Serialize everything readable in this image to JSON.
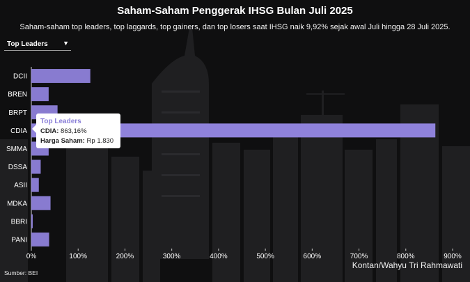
{
  "title": "Saham-Saham Penggerak IHSG Bulan Juli 2025",
  "subtitle": "Saham-saham top leaders, top laggards, top gainers, dan top losers saat IHSG naik 9,92% sejak awal Juli hingga 28 Juli 2025.",
  "dropdown": {
    "selected": "Top Leaders"
  },
  "tooltip": {
    "title": "Top Leaders",
    "row1_key": "CDIA:",
    "row1_value": "863,16%",
    "row2_key": "Harga Saham:",
    "row2_value": "Rp 1.830"
  },
  "source": "Sumber: BEI",
  "credit": "Kontan/Wahyu Tri Rahmawati",
  "colors": {
    "bar": "#8f82db",
    "background": "#0f0f10",
    "grid": "#3a3a3a"
  },
  "chart_data": {
    "type": "bar",
    "orientation": "horizontal",
    "title": "Saham-Saham Penggerak IHSG Bulan Juli 2025",
    "xlabel": "",
    "ylabel": "",
    "categories": [
      "DCII",
      "BREN",
      "BRPT",
      "CDIA",
      "SMMA",
      "DSSA",
      "ASII",
      "MDKA",
      "BBRI",
      "PANI"
    ],
    "series": [
      {
        "values": [
          126,
          37,
          56,
          863.16,
          37,
          20,
          16,
          41,
          3,
          38
        ]
      }
    ],
    "xlim": [
      0,
      900
    ],
    "xticks": [
      0,
      100,
      200,
      300,
      400,
      500,
      600,
      700,
      800,
      900
    ],
    "xtick_labels": [
      "0%",
      "100%",
      "200%",
      "300%",
      "400%",
      "500%",
      "600%",
      "700%",
      "800%",
      "900%"
    ],
    "highlighted": "CDIA",
    "grid": false,
    "legend": "none"
  }
}
